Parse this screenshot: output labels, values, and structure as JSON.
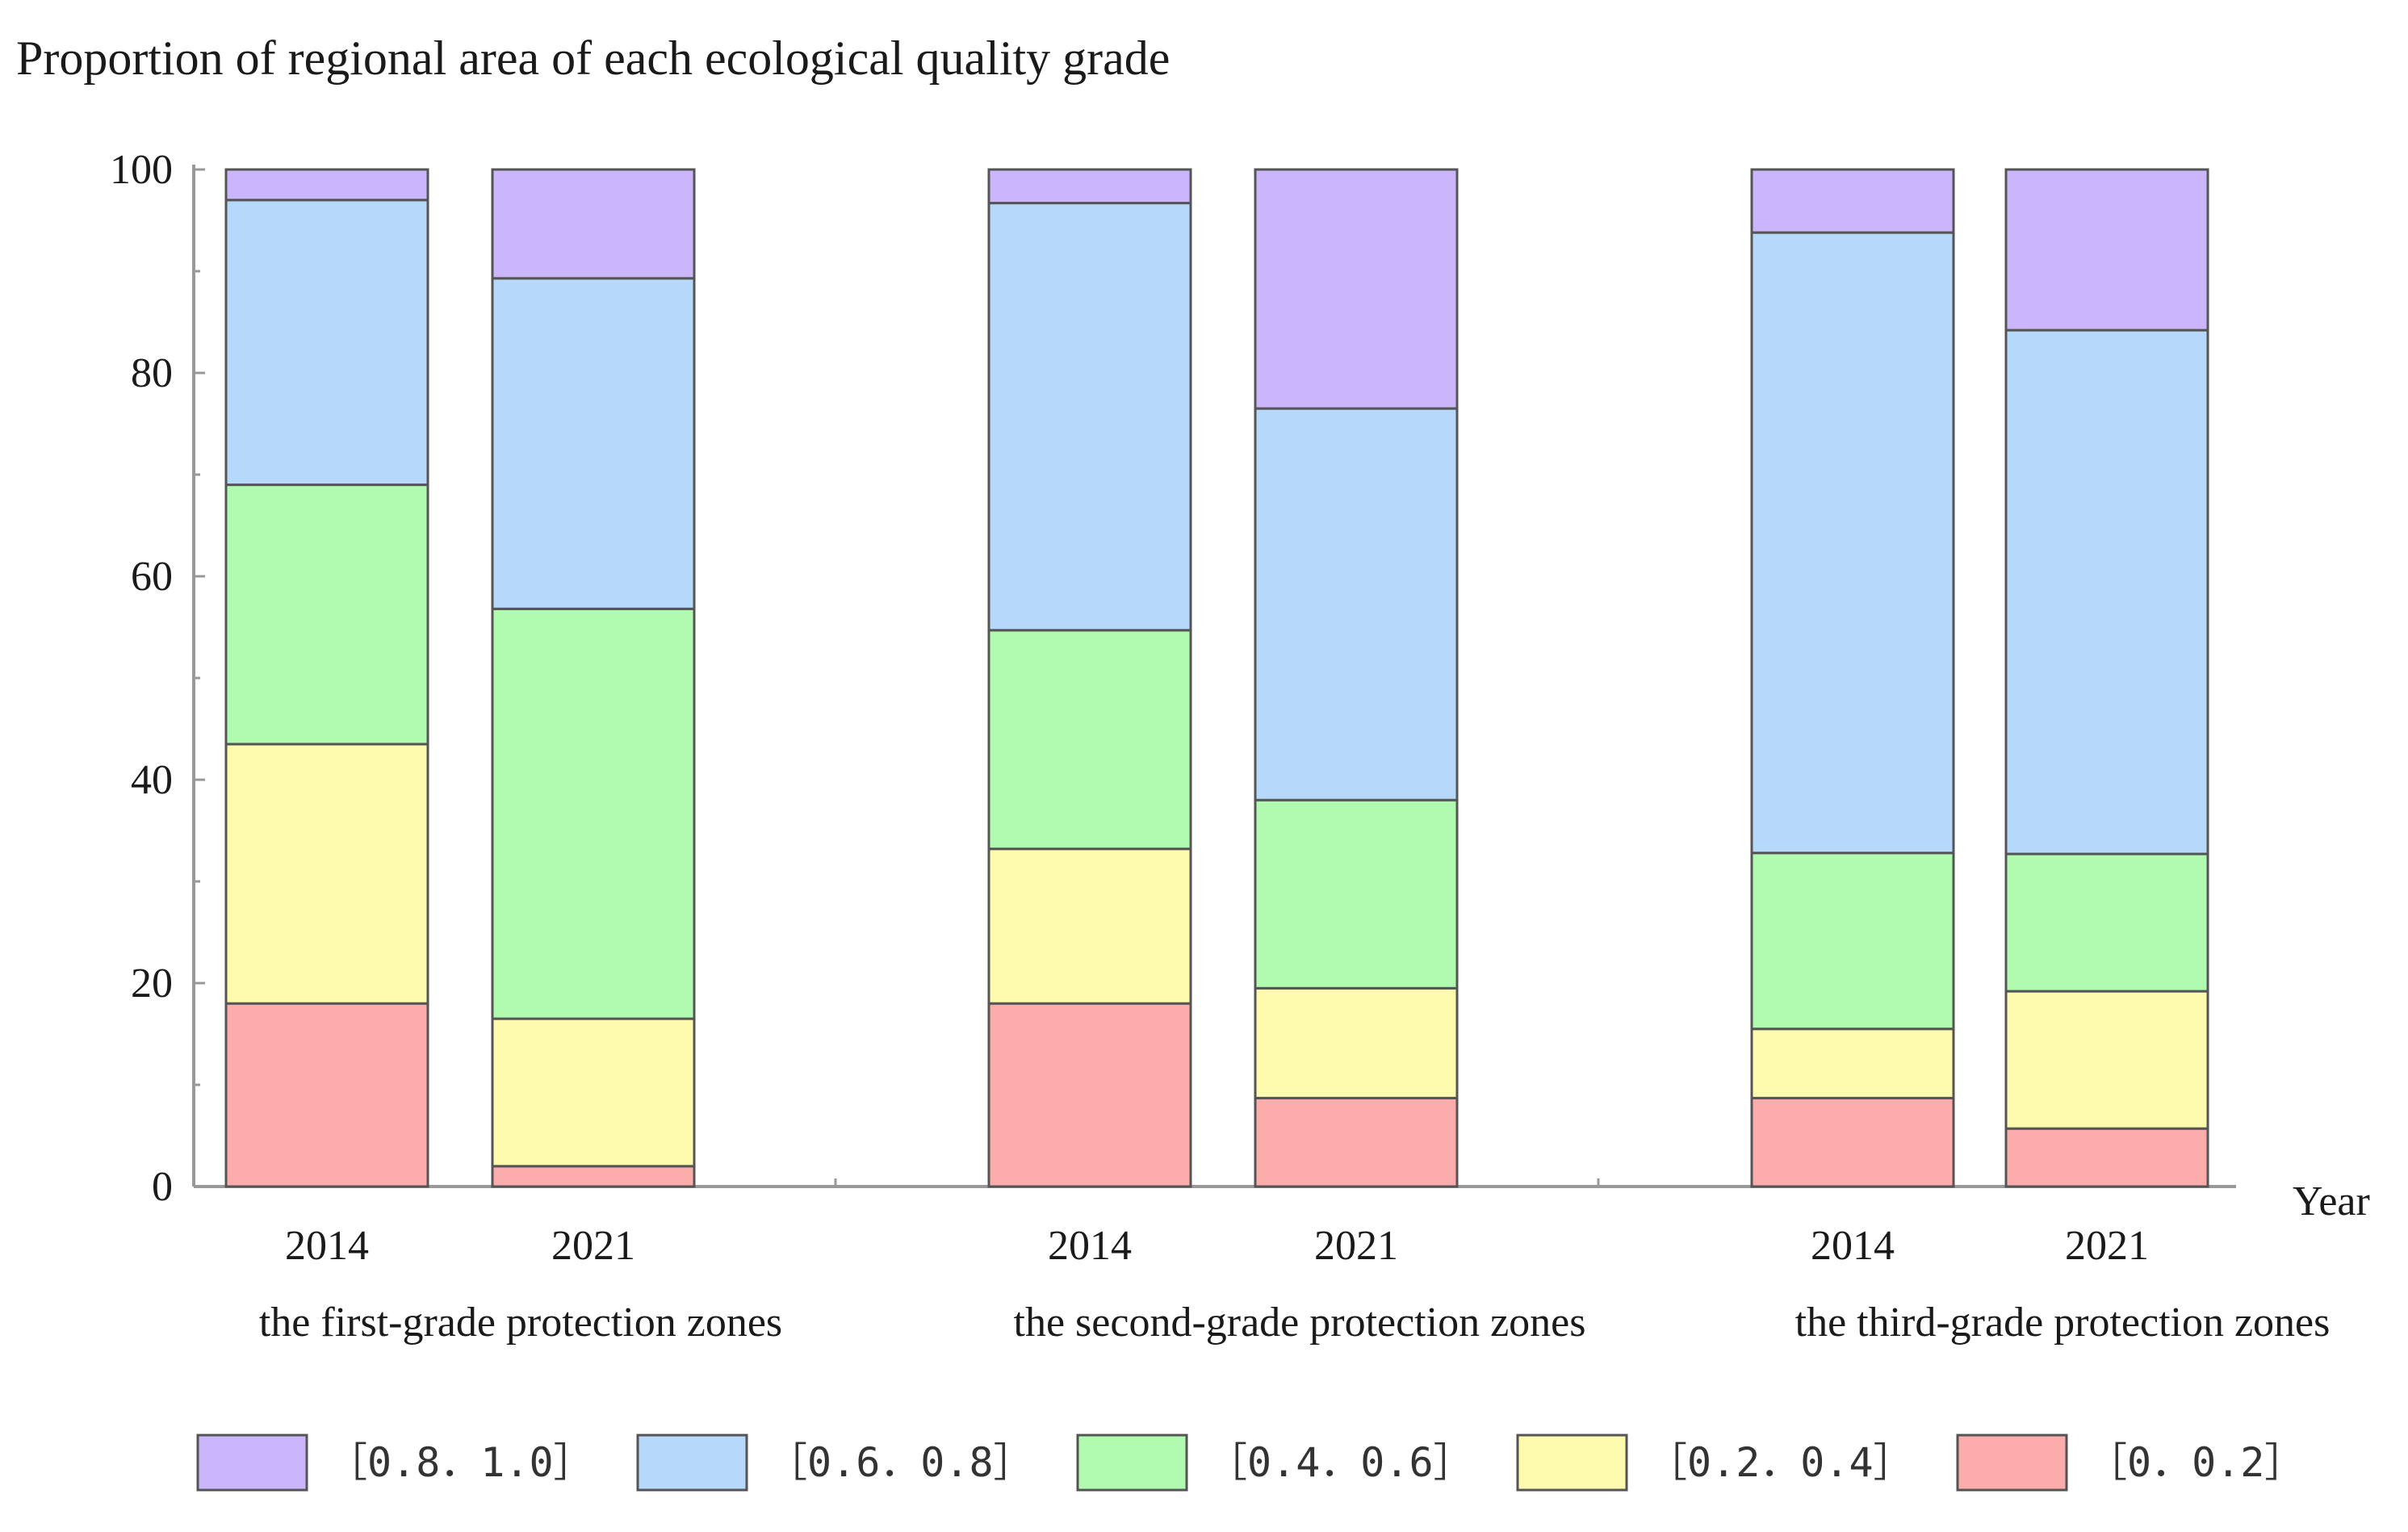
{
  "chart_data": {
    "type": "bar",
    "stacked": true,
    "title": "Proportion of regional area of each ecological quality grade",
    "xlabel": "Year",
    "ylabel": "",
    "ylim": [
      0,
      100
    ],
    "yticks": [
      "0",
      "20",
      "40",
      "60",
      "80",
      "100"
    ],
    "groups": [
      {
        "name": "the first-grade protection zones",
        "bars": [
          {
            "year": "2014",
            "values": [
              18,
              25.5,
              25.5,
              28,
              3
            ]
          },
          {
            "year": "2021",
            "values": [
              2,
              14.5,
              40.3,
              32.5,
              10.7
            ]
          }
        ]
      },
      {
        "name": "the second-grade protection zones",
        "bars": [
          {
            "year": "2014",
            "values": [
              18,
              15.2,
              21.5,
              42,
              3.3
            ]
          },
          {
            "year": "2021",
            "values": [
              8.7,
              10.8,
              18.5,
              38.5,
              23.5
            ]
          }
        ]
      },
      {
        "name": "the third-grade protection zones",
        "bars": [
          {
            "year": "2014",
            "values": [
              8.7,
              6.8,
              17.3,
              61,
              6.2
            ]
          },
          {
            "year": "2021",
            "values": [
              5.7,
              13.5,
              13.5,
              51.5,
              15.8
            ]
          }
        ]
      }
    ],
    "series": [
      {
        "name": "［0．0.2］",
        "color": "#fdacac"
      },
      {
        "name": "［0.2．0.4］",
        "color": "#fefaae"
      },
      {
        "name": "［0.4．0.6］",
        "color": "#b1fbb0"
      },
      {
        "name": "［0.6．0.8］",
        "color": "#b6d8fb"
      },
      {
        "name": "［0.8．1.0］",
        "color": "#cbb6fb"
      }
    ],
    "legend_order": [
      4,
      3,
      2,
      1,
      0
    ],
    "legend_position": "bottom"
  }
}
